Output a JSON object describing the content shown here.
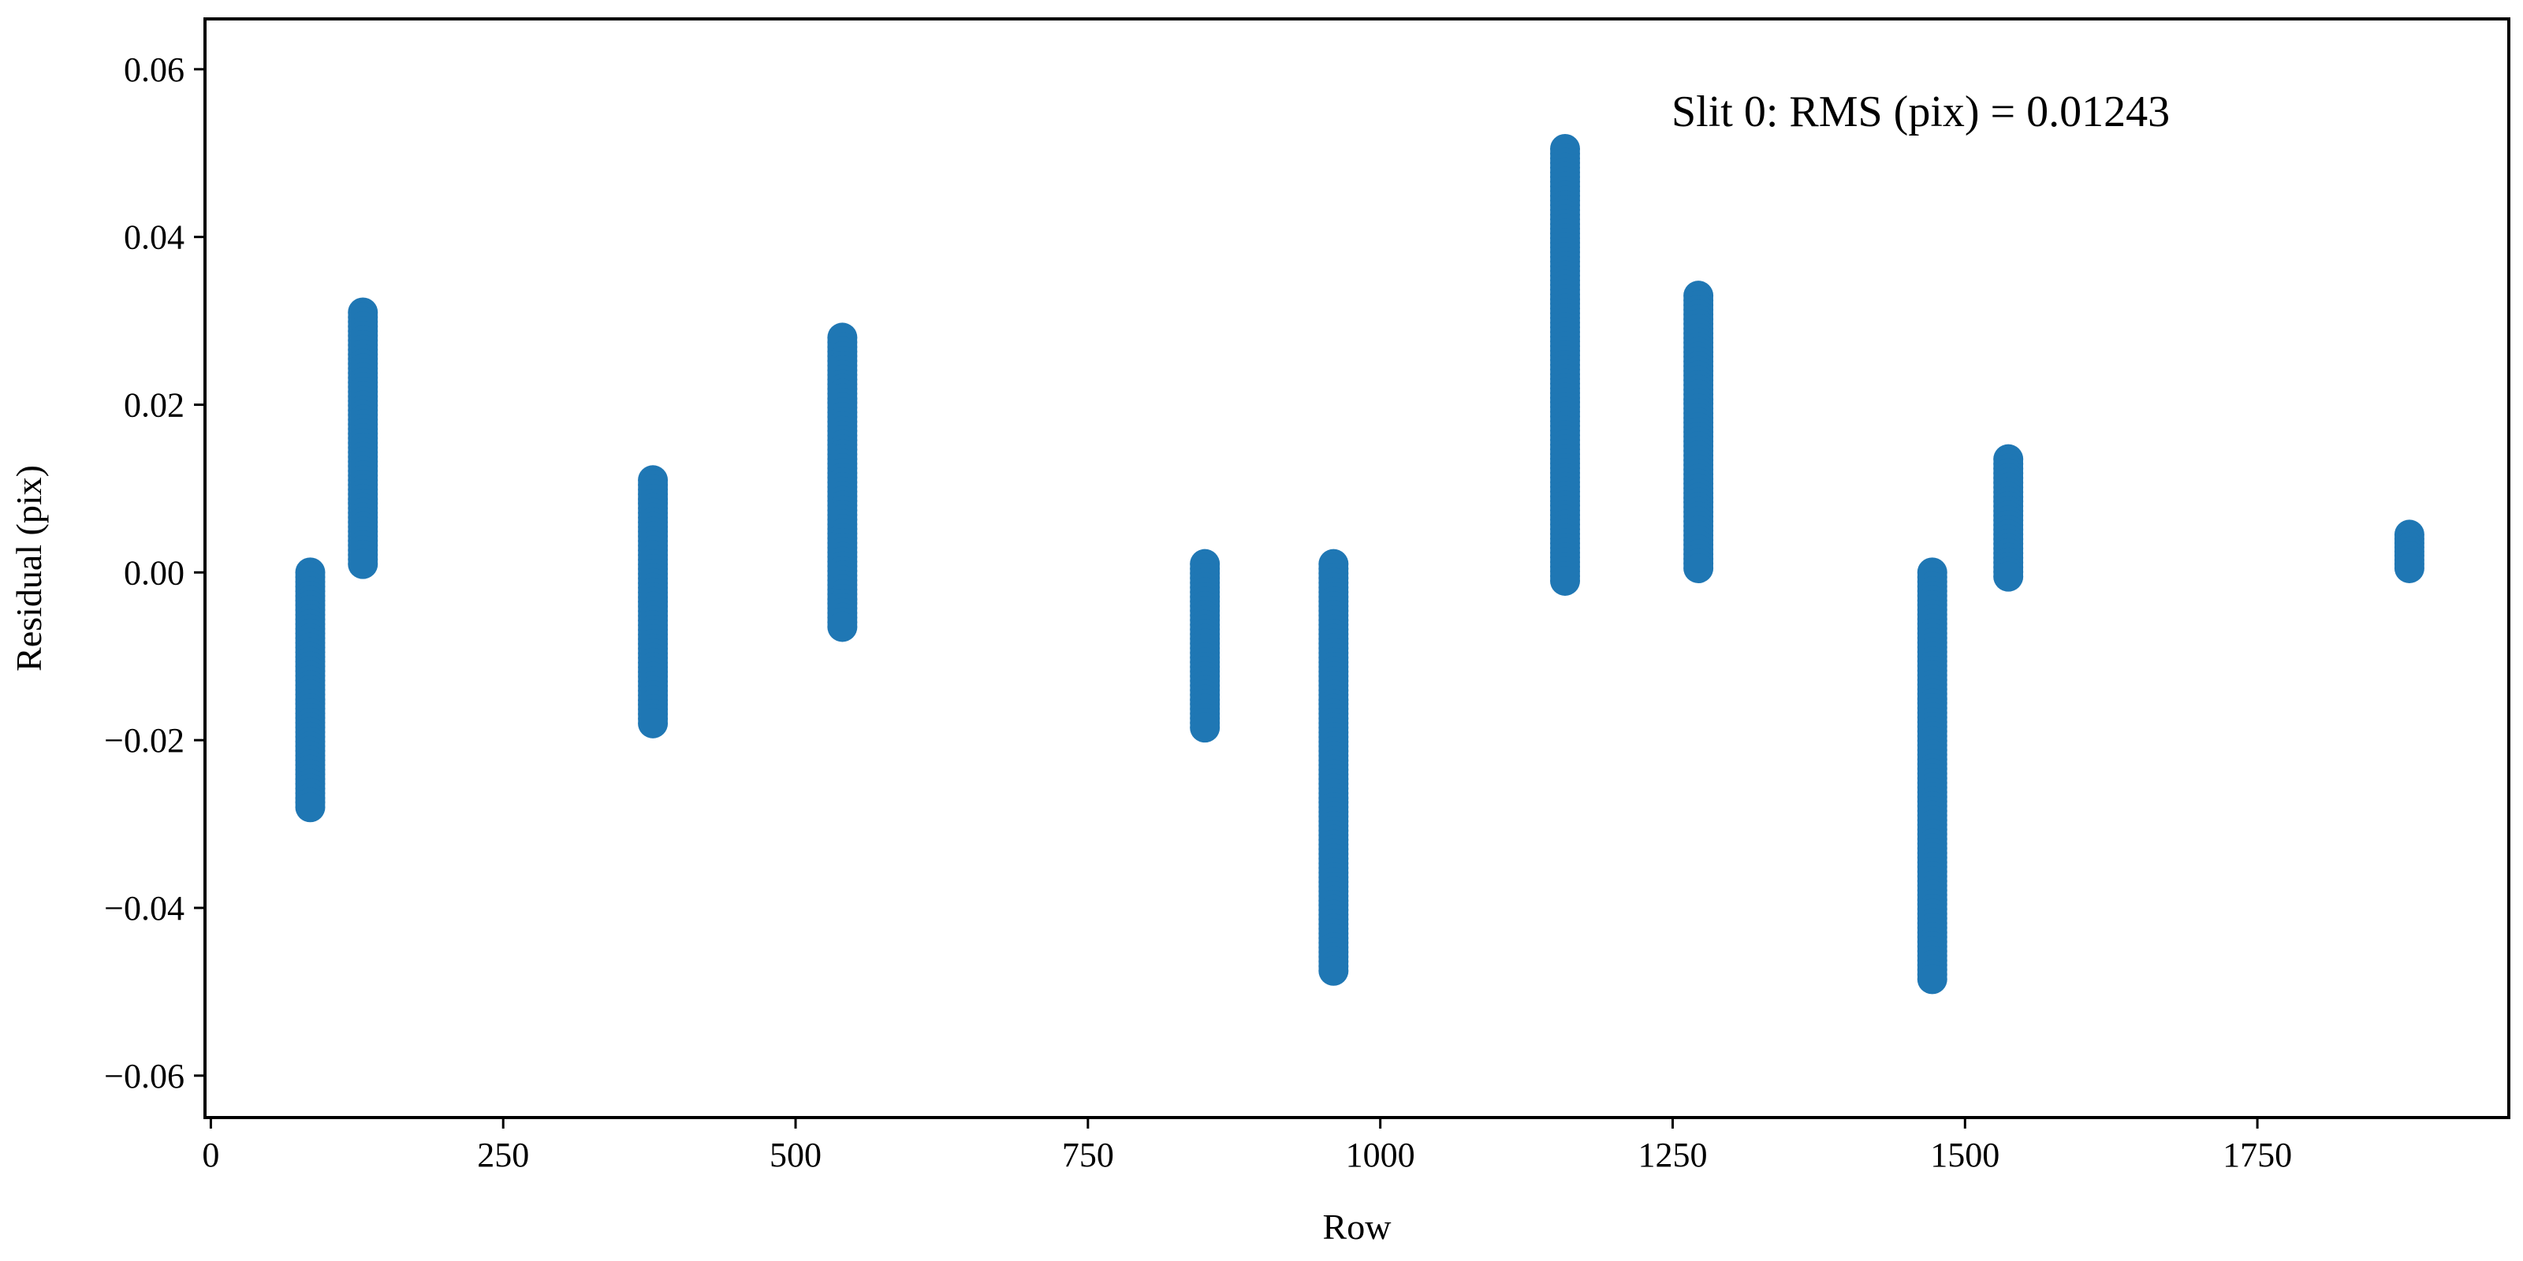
{
  "chart_data": {
    "type": "scatter",
    "annotation": "Slit 0:  RMS (pix) = 0.01243",
    "xlabel": "Row",
    "ylabel": "Residual (pix)",
    "xlim": [
      -5,
      1965
    ],
    "ylim": [
      -0.065,
      0.066
    ],
    "xticks": [
      {
        "value": 0,
        "label": "0"
      },
      {
        "value": 250,
        "label": "250"
      },
      {
        "value": 500,
        "label": "500"
      },
      {
        "value": 750,
        "label": "750"
      },
      {
        "value": 1000,
        "label": "1000"
      },
      {
        "value": 1250,
        "label": "1250"
      },
      {
        "value": 1500,
        "label": "1500"
      },
      {
        "value": 1750,
        "label": "1750"
      }
    ],
    "yticks": [
      {
        "value": 0.06,
        "label": "0.06"
      },
      {
        "value": 0.04,
        "label": "0.04"
      },
      {
        "value": 0.02,
        "label": "0.02"
      },
      {
        "value": 0.0,
        "label": "0.00"
      },
      {
        "value": -0.02,
        "label": "−0.02"
      },
      {
        "value": -0.04,
        "label": "−0.04"
      },
      {
        "value": -0.06,
        "label": "−0.06"
      }
    ],
    "grid": false,
    "color": "#1f77b4",
    "series": [
      {
        "point_groups": [
          {
            "x": 85,
            "y_min": -0.028,
            "y_max": 0.0
          },
          {
            "x": 130,
            "y_min": 0.001,
            "y_max": 0.031
          },
          {
            "x": 378,
            "y_min": -0.018,
            "y_max": 0.011
          },
          {
            "x": 540,
            "y_min": -0.0065,
            "y_max": 0.028
          },
          {
            "x": 850,
            "y_min": -0.0185,
            "y_max": 0.001
          },
          {
            "x": 960,
            "y_min": -0.0475,
            "y_max": 0.001
          },
          {
            "x": 1158,
            "y_min": -0.001,
            "y_max": 0.0505
          },
          {
            "x": 1272,
            "y_min": 0.0005,
            "y_max": 0.033
          },
          {
            "x": 1472,
            "y_min": -0.0485,
            "y_max": 0.0
          },
          {
            "x": 1537,
            "y_min": -0.0005,
            "y_max": 0.0135
          },
          {
            "x": 1880,
            "y_min": 0.0005,
            "y_max": 0.0045
          }
        ]
      }
    ]
  }
}
